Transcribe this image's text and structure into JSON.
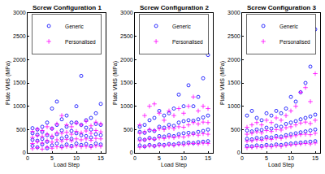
{
  "chart_data": [
    {
      "type": "scatter",
      "title": "Screw Configuration 1",
      "x_label": "Load Step",
      "y_label": "Plate VMS (MPa)",
      "xlim": [
        0,
        16
      ],
      "xticks": [
        0,
        5,
        10,
        15
      ],
      "ylim": [
        0,
        3000
      ],
      "yticks": [
        0,
        500,
        1000,
        1500,
        2000,
        2500,
        3000
      ],
      "grid": false,
      "legend": "top",
      "series": [
        {
          "name": "Generic",
          "color": "#0000ff",
          "marker": "circle",
          "x": [
            1,
            1,
            1,
            1,
            2,
            2,
            2,
            2,
            3,
            3,
            3,
            3,
            4,
            4,
            4,
            4,
            5,
            5,
            5,
            5,
            6,
            6,
            6,
            6,
            7,
            7,
            7,
            7,
            8,
            8,
            8,
            8,
            9,
            9,
            9,
            9,
            10,
            10,
            10,
            10,
            11,
            11,
            11,
            11,
            12,
            12,
            12,
            12,
            13,
            13,
            13,
            13,
            14,
            14,
            14,
            14,
            15,
            15,
            15,
            15
          ],
          "values": [
            150,
            280,
            420,
            530,
            120,
            260,
            390,
            500,
            180,
            300,
            450,
            560,
            100,
            240,
            380,
            650,
            160,
            330,
            520,
            950,
            200,
            400,
            600,
            1100,
            140,
            310,
            480,
            720,
            180,
            350,
            560,
            800,
            150,
            300,
            470,
            650,
            200,
            420,
            650,
            1000,
            170,
            380,
            600,
            1650,
            190,
            360,
            540,
            700,
            150,
            330,
            500,
            750,
            200,
            400,
            620,
            850,
            180,
            380,
            600,
            1050
          ]
        },
        {
          "name": "Personalised",
          "color": "#ff00ff",
          "marker": "plus",
          "x": [
            1,
            1,
            1,
            1,
            2,
            2,
            2,
            2,
            3,
            3,
            3,
            3,
            4,
            4,
            4,
            4,
            5,
            5,
            5,
            5,
            6,
            6,
            6,
            6,
            7,
            7,
            7,
            7,
            8,
            8,
            8,
            8,
            9,
            9,
            9,
            9,
            10,
            10,
            10,
            10,
            11,
            11,
            11,
            11,
            12,
            12,
            12,
            12,
            13,
            13,
            13,
            13,
            14,
            14,
            14,
            14,
            15,
            15,
            15,
            15
          ],
          "values": [
            90,
            200,
            330,
            460,
            110,
            240,
            370,
            510,
            80,
            210,
            350,
            480,
            120,
            260,
            400,
            560,
            100,
            230,
            360,
            520,
            130,
            280,
            430,
            620,
            110,
            250,
            420,
            800,
            140,
            290,
            440,
            600,
            120,
            260,
            400,
            560,
            150,
            300,
            460,
            640,
            130,
            280,
            430,
            600,
            140,
            300,
            470,
            680,
            120,
            270,
            420,
            580,
            150,
            310,
            480,
            660,
            140,
            300,
            450,
            620
          ]
        }
      ]
    },
    {
      "type": "scatter",
      "title": "Screw Configuration 2",
      "x_label": "Load Step",
      "y_label": "Plate VMS (MPa)",
      "xlim": [
        0,
        16
      ],
      "xticks": [
        0,
        5,
        10,
        15
      ],
      "ylim": [
        0,
        3000
      ],
      "yticks": [
        0,
        500,
        1000,
        1500,
        2000,
        2500,
        3000
      ],
      "grid": false,
      "legend": "top",
      "series": [
        {
          "name": "Generic",
          "color": "#0000ff",
          "marker": "circle",
          "x": [
            1,
            1,
            1,
            1,
            2,
            2,
            2,
            2,
            3,
            3,
            3,
            3,
            4,
            4,
            4,
            4,
            5,
            5,
            5,
            5,
            6,
            6,
            6,
            6,
            7,
            7,
            7,
            7,
            8,
            8,
            8,
            8,
            9,
            9,
            9,
            9,
            10,
            10,
            10,
            10,
            11,
            11,
            11,
            11,
            12,
            12,
            12,
            12,
            13,
            13,
            13,
            13,
            14,
            14,
            14,
            14,
            15,
            15,
            15,
            15
          ],
          "values": [
            160,
            300,
            450,
            560,
            140,
            280,
            430,
            600,
            170,
            320,
            480,
            700,
            150,
            300,
            470,
            750,
            180,
            360,
            560,
            900,
            170,
            350,
            540,
            800,
            190,
            380,
            600,
            850,
            180,
            360,
            580,
            950,
            200,
            400,
            650,
            1250,
            210,
            420,
            680,
            1000,
            220,
            430,
            700,
            1450,
            210,
            420,
            690,
            1000,
            230,
            450,
            720,
            1200,
            240,
            470,
            760,
            1600,
            250,
            500,
            800,
            2100
          ]
        },
        {
          "name": "Personalised",
          "color": "#ff00ff",
          "marker": "plus",
          "x": [
            1,
            1,
            1,
            1,
            2,
            2,
            2,
            2,
            3,
            3,
            3,
            3,
            4,
            4,
            4,
            4,
            5,
            5,
            5,
            5,
            6,
            6,
            6,
            6,
            7,
            7,
            7,
            7,
            8,
            8,
            8,
            8,
            9,
            9,
            9,
            9,
            10,
            10,
            10,
            10,
            11,
            11,
            11,
            11,
            12,
            12,
            12,
            12,
            13,
            13,
            13,
            13,
            14,
            14,
            14,
            14,
            15,
            15,
            15,
            15
          ],
          "values": [
            120,
            260,
            420,
            600,
            130,
            280,
            450,
            800,
            150,
            300,
            500,
            1000,
            140,
            290,
            480,
            1050,
            160,
            320,
            520,
            850,
            150,
            310,
            500,
            700,
            170,
            340,
            540,
            900,
            160,
            330,
            520,
            800,
            180,
            350,
            560,
            950,
            170,
            340,
            550,
            850,
            190,
            370,
            600,
            1000,
            200,
            400,
            650,
            1200,
            190,
            380,
            620,
            900,
            210,
            410,
            660,
            1000,
            200,
            400,
            650,
            950
          ]
        }
      ]
    },
    {
      "type": "scatter",
      "title": "Screw Configuration 3",
      "x_label": "Load Step",
      "y_label": "Plate VMS (MPa)",
      "xlim": [
        0,
        16
      ],
      "xticks": [
        0,
        5,
        10,
        15
      ],
      "ylim": [
        0,
        3000
      ],
      "yticks": [
        0,
        500,
        1000,
        1500,
        2000,
        2500,
        3000
      ],
      "grid": false,
      "legend": "top",
      "series": [
        {
          "name": "Generic",
          "color": "#0000ff",
          "marker": "circle",
          "x": [
            1,
            1,
            1,
            1,
            2,
            2,
            2,
            2,
            3,
            3,
            3,
            3,
            4,
            4,
            4,
            4,
            5,
            5,
            5,
            5,
            6,
            6,
            6,
            6,
            7,
            7,
            7,
            7,
            8,
            8,
            8,
            8,
            9,
            9,
            9,
            9,
            10,
            10,
            10,
            10,
            11,
            11,
            11,
            11,
            12,
            12,
            12,
            12,
            13,
            13,
            13,
            13,
            14,
            14,
            14,
            14,
            15,
            15,
            15,
            15
          ],
          "values": [
            150,
            300,
            480,
            800,
            140,
            290,
            460,
            900,
            160,
            320,
            500,
            750,
            150,
            310,
            490,
            700,
            170,
            340,
            540,
            850,
            160,
            330,
            520,
            800,
            180,
            360,
            580,
            900,
            170,
            350,
            560,
            850,
            190,
            380,
            620,
            950,
            200,
            400,
            650,
            1200,
            210,
            420,
            680,
            1100,
            220,
            440,
            720,
            1300,
            230,
            460,
            750,
            1500,
            240,
            480,
            780,
            1850,
            250,
            500,
            820,
            2650
          ]
        },
        {
          "name": "Personalised",
          "color": "#ff00ff",
          "marker": "plus",
          "x": [
            1,
            1,
            1,
            1,
            2,
            2,
            2,
            2,
            3,
            3,
            3,
            3,
            4,
            4,
            4,
            4,
            5,
            5,
            5,
            5,
            6,
            6,
            6,
            6,
            7,
            7,
            7,
            7,
            8,
            8,
            8,
            8,
            9,
            9,
            9,
            9,
            10,
            10,
            10,
            10,
            11,
            11,
            11,
            11,
            12,
            12,
            12,
            12,
            13,
            13,
            13,
            13,
            14,
            14,
            14,
            14,
            15,
            15,
            15,
            15
          ],
          "values": [
            110,
            250,
            400,
            550,
            120,
            260,
            420,
            600,
            130,
            280,
            450,
            650,
            120,
            270,
            430,
            600,
            140,
            300,
            480,
            700,
            130,
            290,
            460,
            650,
            150,
            320,
            500,
            750,
            140,
            310,
            490,
            700,
            160,
            340,
            540,
            800,
            170,
            350,
            560,
            900,
            180,
            370,
            600,
            1000,
            190,
            390,
            640,
            1300,
            200,
            400,
            660,
            1400,
            190,
            390,
            630,
            1100,
            210,
            420,
            700,
            1700
          ]
        }
      ]
    }
  ]
}
